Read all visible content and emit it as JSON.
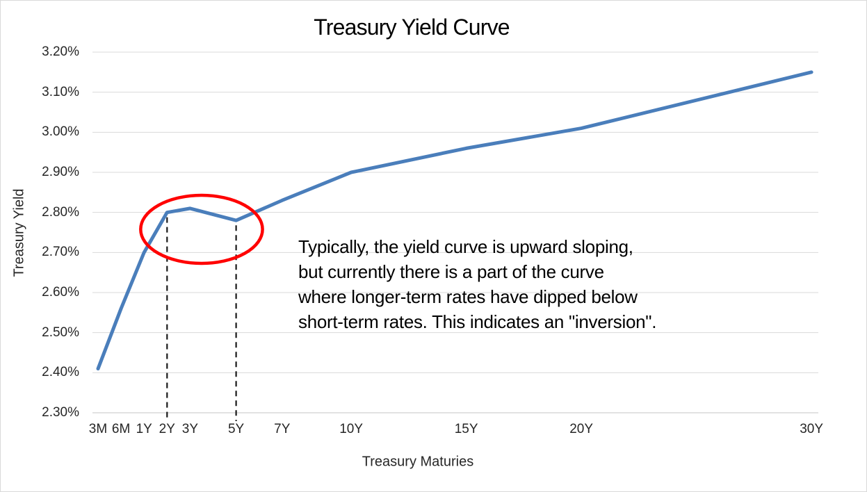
{
  "chart_data": {
    "type": "line",
    "title": "Treasury Yield Curve",
    "xlabel": "Treasury Maturies",
    "ylabel": "Treasury Yield",
    "categories": [
      "3M",
      "6M",
      "1Y",
      "2Y",
      "3Y",
      "5Y",
      "7Y",
      "10Y",
      "15Y",
      "20Y",
      "30Y"
    ],
    "x_steps": [
      0,
      1,
      2,
      3,
      4,
      6,
      8,
      11,
      16,
      21,
      31
    ],
    "values": [
      2.41,
      2.56,
      2.7,
      2.8,
      2.81,
      2.78,
      2.83,
      2.9,
      2.96,
      3.01,
      3.15
    ],
    "y_ticks": [
      "3.20%",
      "3.10%",
      "3.00%",
      "2.90%",
      "2.80%",
      "2.70%",
      "2.60%",
      "2.50%",
      "2.40%",
      "2.30%"
    ],
    "y_tick_values": [
      3.2,
      3.1,
      3.0,
      2.9,
      2.8,
      2.7,
      2.6,
      2.5,
      2.4,
      2.3
    ],
    "ylim": [
      2.3,
      3.2
    ],
    "grid": true,
    "legend": false,
    "line_color": "#4a7ebb",
    "gridline_color": "#d9d9d9",
    "axis_line_color": "#c6c6c6",
    "annotation": {
      "lines": [
        "Typically, the yield curve is upward sloping,",
        "but currently there is a part of the curve",
        "where longer-term rates have dipped below",
        "short-term rates. This indicates an \"inversion\"."
      ],
      "highlight_color": "#ff0000",
      "dashed_marker_categories": [
        "2Y",
        "5Y"
      ],
      "dashed_marker_color": "#1a1a1a",
      "highlight_meaning": "inversion region between 2Y and 5Y"
    }
  }
}
